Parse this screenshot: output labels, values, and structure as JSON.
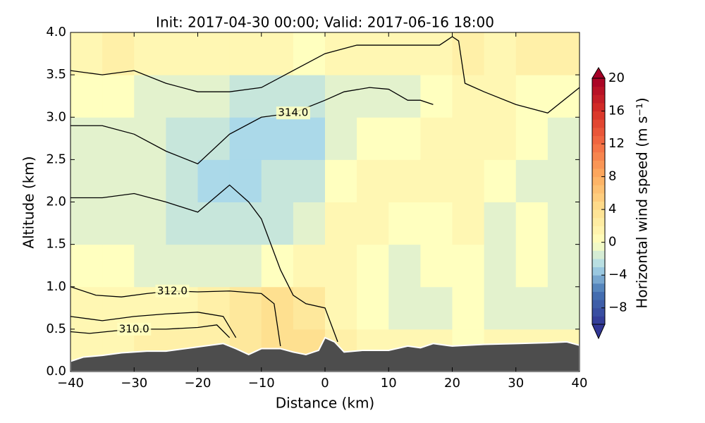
{
  "chart_data": {
    "type": "contour",
    "title": "Init: 2017-04-30 00:00; Valid: 2017-06-16 18:00",
    "xlabel": "Distance (km)",
    "ylabel": "Altitude (km)",
    "colorbar_label": "Horizontal wind speed (m s⁻¹)",
    "xlim": [
      -40,
      40
    ],
    "ylim": [
      0,
      4
    ],
    "xticks": [
      {
        "value": -40,
        "label": "−40"
      },
      {
        "value": -30,
        "label": "−30"
      },
      {
        "value": -20,
        "label": "−20"
      },
      {
        "value": -10,
        "label": "−10"
      },
      0,
      10,
      20,
      30,
      40
    ],
    "yticks": [
      {
        "value": 0,
        "label": "0.0"
      },
      {
        "value": 0.5,
        "label": "0.5"
      },
      {
        "value": 1,
        "label": "1.0"
      },
      {
        "value": 1.5,
        "label": "1.5"
      },
      {
        "value": 2,
        "label": "2.0"
      },
      {
        "value": 2.5,
        "label": "2.5"
      },
      {
        "value": 3,
        "label": "3.0"
      },
      {
        "value": 3.5,
        "label": "3.5"
      },
      {
        "value": 4,
        "label": "4.0"
      }
    ],
    "clim": [
      -10,
      20
    ],
    "level_step": 1,
    "cticks": [
      {
        "value": -8,
        "label": "−8"
      },
      {
        "value": -4,
        "label": "−4"
      },
      0,
      4,
      8,
      12,
      16,
      20
    ],
    "colorscale": [
      [
        -10,
        "#313695"
      ],
      [
        -6,
        "#4575b4"
      ],
      [
        -3,
        "#abd9e9"
      ],
      [
        0,
        "#ffffbf"
      ],
      [
        4,
        "#fee090"
      ],
      [
        8,
        "#fdae61"
      ],
      [
        12,
        "#f46d43"
      ],
      [
        16,
        "#d73027"
      ],
      [
        20,
        "#a50026"
      ]
    ],
    "field": {
      "x_edges": [
        -40,
        -35,
        -30,
        -25,
        -20,
        -15,
        -10,
        -5,
        0,
        5,
        10,
        15,
        20,
        25,
        30,
        35,
        40
      ],
      "y_edges": [
        0,
        0.5,
        1,
        1.5,
        2,
        2.5,
        3,
        3.5,
        4
      ],
      "values": [
        [
          1,
          1,
          2,
          2,
          2,
          3,
          4,
          4,
          2,
          1,
          1,
          1,
          0,
          1,
          1,
          1
        ],
        [
          1,
          1,
          1,
          1,
          2,
          3,
          4,
          3,
          1,
          0,
          -1,
          -1,
          0,
          -1,
          -1,
          -1
        ],
        [
          0,
          0,
          -1,
          -1,
          -1,
          -1,
          0,
          1,
          1,
          0,
          -1,
          0,
          0,
          -1,
          0,
          -1
        ],
        [
          -1,
          -1,
          -1,
          -2,
          -2,
          -2,
          -2,
          -1,
          1,
          1,
          0,
          0,
          1,
          -1,
          0,
          -1
        ],
        [
          -1,
          -1,
          -1,
          -2,
          -3,
          -3,
          -2,
          -2,
          0,
          1,
          1,
          1,
          1,
          0,
          -1,
          -1
        ],
        [
          -1,
          -1,
          -1,
          -2,
          -2,
          -3,
          -3,
          -3,
          -1,
          0,
          0,
          1,
          1,
          1,
          0,
          -1
        ],
        [
          0,
          0,
          -1,
          -1,
          -1,
          -2,
          -2,
          -2,
          -1,
          -1,
          -1,
          0,
          1,
          1,
          0,
          0
        ],
        [
          1,
          2,
          1,
          1,
          1,
          1,
          1,
          0,
          1,
          1,
          1,
          1,
          2,
          1,
          2,
          2
        ]
      ]
    },
    "contours": [
      {
        "level": 310,
        "label": "310.0",
        "x": [
          -40,
          -37,
          -33,
          -30,
          -25,
          -20,
          -17,
          -15
        ],
        "y": [
          0.47,
          0.45,
          0.48,
          0.5,
          0.5,
          0.52,
          0.55,
          0.4
        ]
      },
      {
        "level": 311,
        "x": [
          -40,
          -35,
          -30,
          -25,
          -20,
          -16,
          -14
        ],
        "y": [
          0.65,
          0.6,
          0.65,
          0.68,
          0.7,
          0.65,
          0.4
        ]
      },
      {
        "level": 312,
        "label": "312.0",
        "x": [
          -40,
          -36,
          -32,
          -28,
          -24,
          -20,
          -15,
          -10,
          -8,
          -7
        ],
        "y": [
          1.0,
          0.9,
          0.88,
          0.92,
          0.95,
          0.94,
          0.95,
          0.92,
          0.8,
          0.3
        ]
      },
      {
        "level": 313,
        "x": [
          -40,
          -35,
          -30,
          -25,
          -20,
          -15,
          -12,
          -10,
          -7,
          -5,
          -3,
          0,
          2
        ],
        "y": [
          2.05,
          2.05,
          2.1,
          2.0,
          1.88,
          2.2,
          2.0,
          1.8,
          1.2,
          0.9,
          0.8,
          0.75,
          0.35
        ]
      },
      {
        "level": 314,
        "x": [
          -40,
          -35,
          -30,
          -25,
          -20,
          -15,
          -10,
          -5,
          0,
          3,
          7,
          10,
          13,
          15,
          17
        ],
        "y": [
          2.9,
          2.9,
          2.8,
          2.6,
          2.45,
          2.8,
          3.0,
          3.05,
          3.2,
          3.3,
          3.35,
          3.33,
          3.2,
          3.2,
          3.15
        ],
        "label": "314.0"
      },
      {
        "level": 315,
        "x": [
          -40,
          -35,
          -30,
          -25,
          -20,
          -15,
          -10,
          -5,
          0,
          5,
          10,
          15,
          18,
          19,
          20,
          21,
          22,
          25,
          30,
          35,
          40
        ],
        "y": [
          3.55,
          3.5,
          3.55,
          3.4,
          3.3,
          3.3,
          3.35,
          3.55,
          3.75,
          3.85,
          3.85,
          3.85,
          3.85,
          3.9,
          3.95,
          3.9,
          3.4,
          3.3,
          3.15,
          3.05,
          3.35
        ]
      }
    ],
    "terrain": {
      "color": "#4d4d4d",
      "x": [
        -40,
        -38,
        -35,
        -32,
        -28,
        -25,
        -22,
        -19,
        -16,
        -14,
        -12,
        -10,
        -7,
        -5,
        -3,
        -1,
        0,
        1.5,
        3,
        6,
        10,
        13,
        15,
        17,
        20,
        25,
        30,
        35,
        38,
        40
      ],
      "y": [
        0.12,
        0.17,
        0.19,
        0.22,
        0.24,
        0.24,
        0.27,
        0.3,
        0.33,
        0.27,
        0.2,
        0.27,
        0.27,
        0.23,
        0.2,
        0.25,
        0.4,
        0.35,
        0.23,
        0.25,
        0.25,
        0.3,
        0.28,
        0.33,
        0.3,
        0.32,
        0.33,
        0.34,
        0.35,
        0.31
      ]
    }
  }
}
